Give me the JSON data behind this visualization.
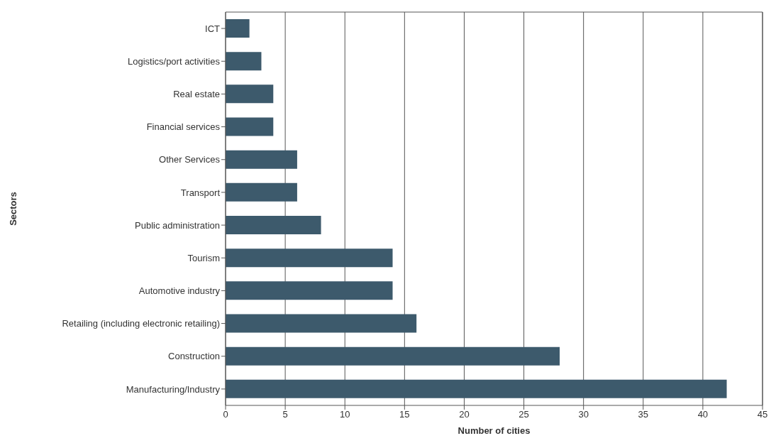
{
  "chart_data": {
    "type": "bar",
    "orientation": "horizontal",
    "xlabel": "Number of cities",
    "ylabel": "Sectors",
    "categories": [
      "ICT",
      "Logistics/port activities",
      "Real estate",
      "Financial services",
      "Other Services",
      "Transport",
      "Public administration",
      "Tourism",
      "Automotive industry",
      "Retailing (including electronic retailing)",
      "Construction",
      "Manufacturing/Industry"
    ],
    "values": [
      2,
      3,
      4,
      4,
      6,
      6,
      8,
      14,
      14,
      16,
      28,
      42
    ],
    "color": "#3d5a6c",
    "xlim": [
      0,
      45
    ],
    "xticks": [
      0,
      5,
      10,
      15,
      20,
      25,
      30,
      35,
      40,
      45
    ],
    "grid": "x",
    "legend": false
  }
}
